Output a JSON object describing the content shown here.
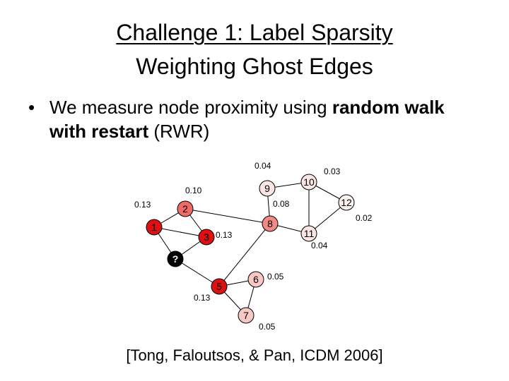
{
  "slide": {
    "title_line1": "Challenge 1: Label Sparsity",
    "title_line2": "Weighting Ghost Edges",
    "bullet": {
      "symbol": "•",
      "text_before": "We measure node proximity using ",
      "bold_text": "random walk with restart",
      "text_after": " (RWR)"
    },
    "citation": "[Tong, Faloutsos, & Pan, ICDM 2006]"
  },
  "graph": {
    "nodes": [
      {
        "id": "1",
        "label": "1",
        "fill": "#dd1111",
        "score": "0.13"
      },
      {
        "id": "2",
        "label": "2",
        "fill": "#ef6b66",
        "score": "0.10"
      },
      {
        "id": "3",
        "label": "3",
        "fill": "#dd1111",
        "score": "0.13"
      },
      {
        "id": "q",
        "label": "?",
        "fill": "#000000",
        "score": ""
      },
      {
        "id": "5",
        "label": "5",
        "fill": "#dd1111",
        "score": "0.13"
      },
      {
        "id": "6",
        "label": "6",
        "fill": "#f8c8c4",
        "score": "0.05"
      },
      {
        "id": "7",
        "label": "7",
        "fill": "#f8c8c4",
        "score": "0.05"
      },
      {
        "id": "8",
        "label": "8",
        "fill": "#f08a85",
        "score": "0.08"
      },
      {
        "id": "9",
        "label": "9",
        "fill": "#fbe6e3",
        "score": "0.04"
      },
      {
        "id": "10",
        "label": "10",
        "fill": "#fbe6e3",
        "score": "0.03"
      },
      {
        "id": "11",
        "label": "11",
        "fill": "#fbe6e3",
        "score": "0.04"
      },
      {
        "id": "12",
        "label": "12",
        "fill": "#fdf1ef",
        "score": "0.02"
      }
    ],
    "edges": [
      [
        "1",
        "2"
      ],
      [
        "1",
        "3"
      ],
      [
        "1",
        "q"
      ],
      [
        "2",
        "3"
      ],
      [
        "2",
        "8"
      ],
      [
        "q",
        "5"
      ],
      [
        "3",
        "q"
      ],
      [
        "5",
        "6"
      ],
      [
        "5",
        "7"
      ],
      [
        "6",
        "7"
      ],
      [
        "5",
        "8"
      ],
      [
        "8",
        "9"
      ],
      [
        "8",
        "11"
      ],
      [
        "9",
        "10"
      ],
      [
        "10",
        "11"
      ],
      [
        "10",
        "12"
      ],
      [
        "11",
        "12"
      ]
    ]
  }
}
